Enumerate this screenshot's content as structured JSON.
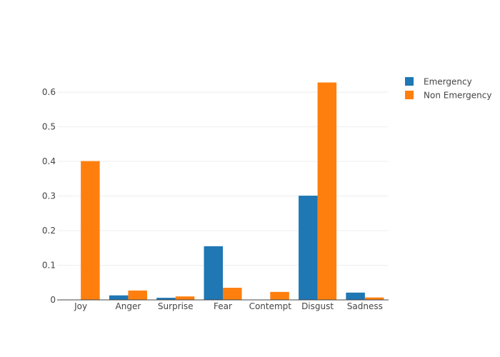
{
  "chart_data": {
    "type": "bar",
    "categories": [
      "Joy",
      "Anger",
      "Surprise",
      "Fear",
      "Contempt",
      "Disgust",
      "Sadness"
    ],
    "series": [
      {
        "name": "Emergency",
        "color": "#1f77b4",
        "values": [
          0.0,
          0.013,
          0.006,
          0.155,
          0.0,
          0.301,
          0.021
        ]
      },
      {
        "name": "Non Emergency",
        "color": "#ff7f0e",
        "values": [
          0.401,
          0.027,
          0.01,
          0.035,
          0.023,
          0.628,
          0.007
        ]
      }
    ],
    "yticks": [
      0,
      0.1,
      0.2,
      0.3,
      0.4,
      0.5,
      0.6
    ],
    "ytick_labels": [
      "0",
      "0.1",
      "0.2",
      "0.3",
      "0.4",
      "0.5",
      "0.6"
    ],
    "ylim": [
      0,
      0.66
    ],
    "grid": true,
    "legend_position": "top-right",
    "title": "",
    "xlabel": "",
    "ylabel": ""
  }
}
